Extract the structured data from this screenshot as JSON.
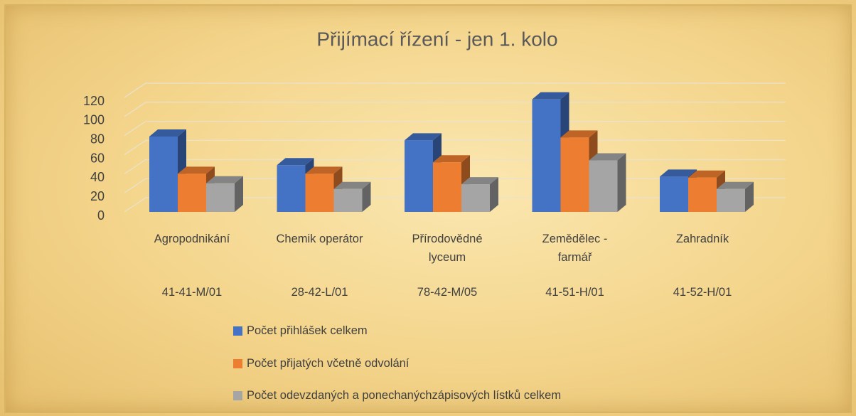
{
  "chart_data": {
    "type": "bar3d",
    "title": "Přijímací řízení - jen 1. kolo",
    "categories": [
      "Agropodnikání",
      "Chemik operátor",
      "Přírodovědné lyceum",
      "Zemědělec - farmář",
      "Zahradník"
    ],
    "category_codes": [
      "41-41-M/01",
      "28-42-L/01",
      "78-42-M/05",
      "41-51-H/01",
      "41-52-H/01"
    ],
    "series": [
      {
        "name": "Počet přihlášek celkem",
        "color": "#4472c4",
        "values": [
          79,
          49,
          75,
          118,
          37
        ]
      },
      {
        "name": "Počet přijatých včetně odvolání",
        "color": "#ed7d31",
        "values": [
          40,
          40,
          52,
          78,
          36
        ]
      },
      {
        "name": "Počet odevzdaných a ponechanýchzápisových lístků celkem",
        "color": "#a5a5a5",
        "values": [
          30,
          24,
          29,
          54,
          24
        ]
      }
    ],
    "ylim": [
      0,
      120
    ],
    "yticks": [
      0,
      20,
      40,
      60,
      80,
      100,
      120
    ],
    "grid": true
  }
}
